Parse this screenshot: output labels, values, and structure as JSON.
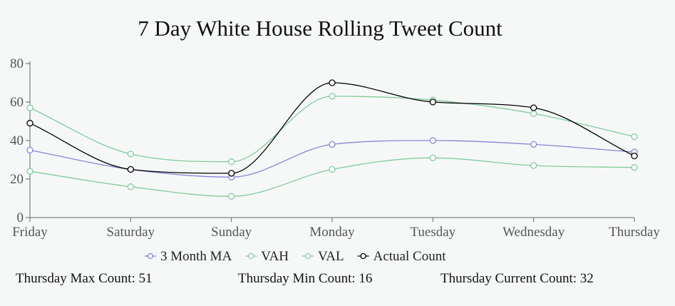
{
  "chart_data": {
    "type": "line",
    "title": "7 Day White House Rolling Tweet Count",
    "xlabel": "",
    "ylabel": "",
    "categories": [
      "Friday",
      "Saturday",
      "Sunday",
      "Monday",
      "Tuesday",
      "Wednesday",
      "Thursday"
    ],
    "ylim": [
      0,
      80
    ],
    "yticks": [
      0,
      20,
      40,
      60,
      80
    ],
    "grid": false,
    "legend_position": "bottom",
    "series": [
      {
        "name": "3 Month MA",
        "color": "#8884d8",
        "values": [
          35,
          25,
          21,
          38,
          40,
          38,
          34
        ]
      },
      {
        "name": "VAH",
        "color": "#82ca9d",
        "values": [
          57,
          33,
          29,
          63,
          61,
          54,
          42
        ]
      },
      {
        "name": "VAL",
        "color": "#82ca9d",
        "values": [
          24,
          16,
          11,
          25,
          31,
          27,
          26
        ]
      },
      {
        "name": "Actual Count",
        "color": "#000000",
        "values": [
          49,
          25,
          23,
          70,
          60,
          57,
          32
        ]
      }
    ]
  },
  "footer": {
    "max_label": "Thursday Max Count: 51",
    "min_label": "Thursday Min Count: 16",
    "current_label": "Thursday Current Count: 32"
  }
}
